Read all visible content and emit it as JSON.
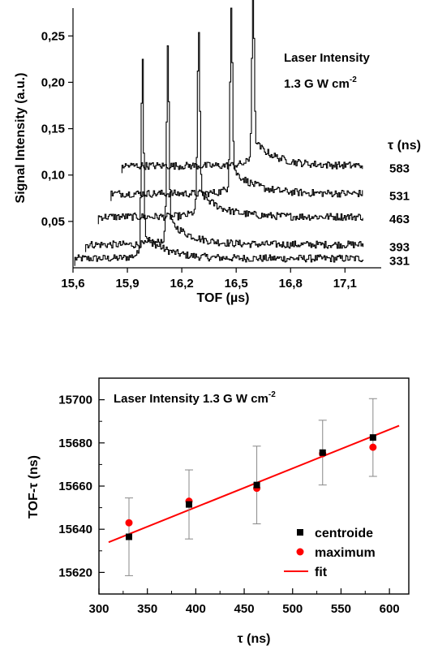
{
  "chart_data": [
    {
      "type": "line",
      "xlabel": "TOF (µs)",
      "ylabel": "Signal Intensity (a.u.)",
      "xlim": [
        15.6,
        17.3
      ],
      "ylim": [
        0.0,
        0.28
      ],
      "x_ticks": [
        "15,6",
        "15,9",
        "16,2",
        "16,5",
        "16,8",
        "17,1"
      ],
      "x_tick_values": [
        15.6,
        15.9,
        16.2,
        16.5,
        16.8,
        17.1
      ],
      "y_ticks": [
        "0,05",
        "0,10",
        "0,15",
        "0,20",
        "0,25"
      ],
      "y_tick_values": [
        0.05,
        0.1,
        0.15,
        0.2,
        0.25
      ],
      "annotation": [
        "Laser Intensity",
        "1.3 G W cm",
        "-2"
      ],
      "legend_title": "τ (ns)",
      "series": [
        {
          "name": "331",
          "start": 15.61,
          "end": 17.2,
          "baseline": 0.01,
          "peak_x": 15.98,
          "peak_y": 0.205
        },
        {
          "name": "393",
          "start": 15.67,
          "end": 17.2,
          "baseline": 0.025,
          "peak_x": 16.12,
          "peak_y": 0.215
        },
        {
          "name": "463",
          "start": 15.74,
          "end": 17.2,
          "baseline": 0.055,
          "peak_x": 16.29,
          "peak_y": 0.235
        },
        {
          "name": "531",
          "start": 15.81,
          "end": 17.2,
          "baseline": 0.08,
          "peak_x": 16.47,
          "peak_y": 0.255
        },
        {
          "name": "583",
          "start": 15.87,
          "end": 17.2,
          "baseline": 0.11,
          "peak_x": 16.59,
          "peak_y": 0.275
        }
      ]
    },
    {
      "type": "scatter",
      "xlabel": "τ (ns)",
      "ylabel": "TOF-τ (ns)",
      "xlim": [
        300,
        620
      ],
      "ylim": [
        15610,
        15710
      ],
      "x_ticks": [
        "300",
        "350",
        "400",
        "450",
        "500",
        "550",
        "600"
      ],
      "x_tick_values": [
        300,
        350,
        400,
        450,
        500,
        550,
        600
      ],
      "y_ticks": [
        "15620",
        "15640",
        "15660",
        "15680",
        "15700"
      ],
      "y_tick_values": [
        15620,
        15640,
        15660,
        15680,
        15700
      ],
      "annotation": [
        "Laser Intensity 1.3 G W cm",
        "-2"
      ],
      "legend_placement": "bottom-right",
      "series": [
        {
          "name": "centroide",
          "marker": "square",
          "color": "#000000",
          "x": [
            331,
            393,
            463,
            531,
            583
          ],
          "y": [
            15636.5,
            15651.5,
            15660.5,
            15675.5,
            15682.5
          ],
          "err": [
            18,
            16,
            18,
            15,
            18
          ]
        },
        {
          "name": "maximum",
          "marker": "circle",
          "color": "#ff0000",
          "x": [
            331,
            393,
            463,
            531,
            583
          ],
          "y": [
            15643,
            15653,
            15659,
            15675,
            15678
          ]
        },
        {
          "name": "fit",
          "marker": "line",
          "color": "#ff0000",
          "x": [
            310,
            610
          ],
          "y": [
            15634,
            15688
          ]
        }
      ]
    }
  ]
}
